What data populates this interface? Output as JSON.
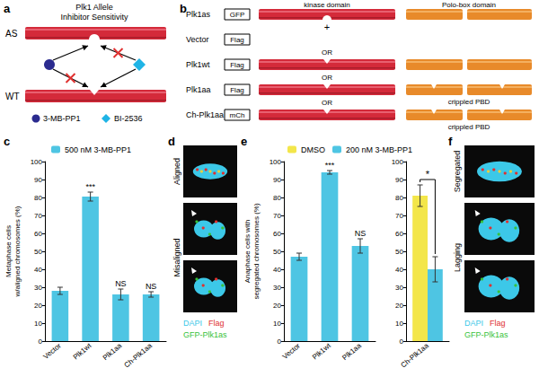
{
  "panels": {
    "a": {
      "label": "a",
      "title": "Plk1 Allele",
      "subtitle": "Inhibitor Sensitivity",
      "rows": [
        "AS",
        "WT"
      ],
      "inhibitors": [
        {
          "name": "3-MB-PP1",
          "color": "#2b2b8f"
        },
        {
          "name": "BI-2536",
          "color": "#1fb4e6"
        }
      ]
    },
    "b": {
      "label": "b",
      "headers": [
        "kinase domain",
        "Polo-box domain"
      ],
      "base": {
        "name": "Plk1as",
        "tag": "GFP"
      },
      "plus": "+",
      "separator": "OR",
      "constructs": [
        {
          "name": "Vector",
          "tag": "Flag"
        },
        {
          "name": "Plk1wt",
          "tag": "Flag"
        },
        {
          "name": "Plk1aa",
          "tag": "Flag",
          "note": "crippled PBD"
        },
        {
          "name": "Ch-Plk1aa",
          "tag": "mCh",
          "note": "crippled PBD"
        }
      ]
    },
    "c": {
      "label": "c"
    },
    "d": {
      "label": "d",
      "images": [
        "Aligned",
        "Misaligned"
      ],
      "stains": [
        {
          "text": "DAPI",
          "color": "#3cc8e8"
        },
        {
          "text": "Flag",
          "color": "#e0302f"
        },
        {
          "text": "GFP-Plk1as",
          "color": "#36c23a"
        }
      ]
    },
    "e": {
      "label": "e"
    },
    "f": {
      "label": "f",
      "images": [
        "Segregated",
        "Lagging"
      ],
      "stains": [
        {
          "text": "DAPI",
          "color": "#3cc8e8"
        },
        {
          "text": "Flag",
          "color": "#e0302f"
        },
        {
          "text": "GFP-Plk1as",
          "color": "#36c23a"
        }
      ]
    }
  },
  "chart_data": [
    {
      "type": "bar",
      "ylabel": "Metaphase cells\nw/aligned chromosomes (%)",
      "categories": [
        "Vector",
        "Plk1wt",
        "Plk1aa",
        "Ch-Plk1aa"
      ],
      "series": [
        {
          "name": "500 nM 3-MB-PP1",
          "color": "#4ec5e3",
          "values": [
            28,
            80.5,
            26,
            26
          ],
          "errors": [
            2,
            2.5,
            3,
            1.5
          ]
        }
      ],
      "annotations": [
        null,
        "***",
        "NS",
        "NS"
      ],
      "ylim": [
        0,
        100
      ],
      "yticks": [
        0,
        10,
        20,
        30,
        40,
        50,
        60,
        70,
        80,
        90,
        100
      ],
      "grid": false,
      "legend": "top-left"
    },
    {
      "type": "bar",
      "ylabel": "Anaphase cells with\nsegregated chromosomes (%)",
      "categories": [
        "Vector",
        "Plk1wt",
        "Plk1aa"
      ],
      "color": "#4ec5e3",
      "values": [
        47,
        94,
        53
      ],
      "errors": [
        2,
        1,
        4
      ],
      "annotations": [
        null,
        "***",
        "NS"
      ],
      "ylim": [
        0,
        100
      ],
      "yticks": [
        0,
        10,
        20,
        30,
        40,
        50,
        60,
        70,
        80,
        90,
        100
      ],
      "grid": false
    },
    {
      "type": "bar",
      "categories": [
        "Ch-Plk1aa"
      ],
      "series": [
        {
          "name": "DMSO",
          "color": "#f3e64a",
          "values": [
            81
          ],
          "errors": [
            6
          ]
        },
        {
          "name": "200 nM 3-MB-PP1",
          "color": "#4ec5e3",
          "values": [
            40
          ],
          "errors": [
            7
          ]
        }
      ],
      "annotations": [
        {
          "text": "*",
          "between": [
            "DMSO",
            "200 nM 3-MB-PP1"
          ]
        }
      ],
      "ylim": [
        0,
        100
      ],
      "yticks": [
        0,
        10,
        20,
        30,
        40,
        50,
        60,
        70,
        80,
        90,
        100
      ],
      "grid": false,
      "legend": "top-left"
    }
  ]
}
